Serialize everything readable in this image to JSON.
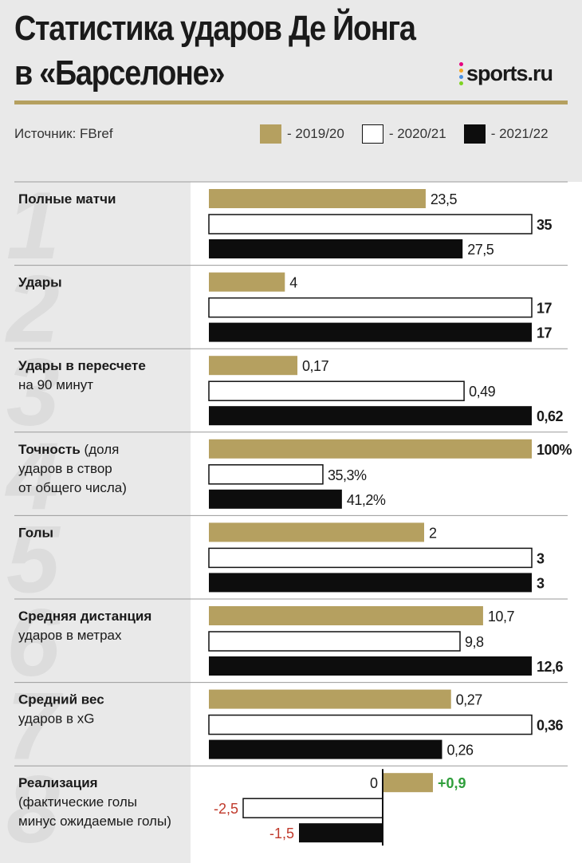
{
  "header": {
    "title_line1": "Статистика ударов Де Йонга",
    "title_line2": "в «Барселоне»",
    "source": "Источник: FBref",
    "logo": "sports.ru",
    "logo_dots": [
      "#e6007e",
      "#f5a623",
      "#4a90e2",
      "#7ed321"
    ]
  },
  "colors": {
    "gold": "#b5a060",
    "black": "#0d0d0d",
    "white": "#ffffff",
    "positive": "#2e9e3a",
    "negative": "#c0392b",
    "watermark": "#dcdcdc"
  },
  "legend": [
    {
      "label": "- 2019/20",
      "color": "#b5a060"
    },
    {
      "label": "- 2020/21",
      "color": "#ffffff"
    },
    {
      "label": "- 2021/22",
      "color": "#0d0d0d"
    }
  ],
  "chart_data": {
    "type": "bar",
    "series_names": [
      "2019/20",
      "2020/21",
      "2021/22"
    ],
    "groups": [
      {
        "label": [
          "Полные матчи"
        ],
        "values": [
          23.5,
          35,
          27.5
        ],
        "labels": [
          "23,5",
          "35",
          "27,5"
        ],
        "max": 35
      },
      {
        "label": [
          "Удары"
        ],
        "values": [
          4,
          17,
          17
        ],
        "labels": [
          "4",
          "17",
          "17"
        ],
        "max": 17
      },
      {
        "label": [
          "Удары в пересчете",
          "на 90 минут"
        ],
        "values": [
          0.17,
          0.49,
          0.62
        ],
        "labels": [
          "0,17",
          "0,49",
          "0,62"
        ],
        "max": 0.62
      },
      {
        "label": [
          "Точность (доля",
          "ударов в створ",
          "от общего числа)"
        ],
        "label_bold_part": "Точность",
        "values": [
          100,
          35.3,
          41.2
        ],
        "labels": [
          "100%",
          "35,3%",
          "41,2%"
        ],
        "max": 100
      },
      {
        "label": [
          "Голы"
        ],
        "values": [
          2,
          3,
          3
        ],
        "labels": [
          "2",
          "3",
          "3"
        ],
        "max": 3
      },
      {
        "label": [
          "Средняя дистанция",
          "ударов в метрах"
        ],
        "values": [
          10.7,
          9.8,
          12.6
        ],
        "labels": [
          "10,7",
          "9,8",
          "12,6"
        ],
        "max": 12.6
      },
      {
        "label": [
          "Средний вес",
          "ударов в xG"
        ],
        "values": [
          0.27,
          0.36,
          0.26
        ],
        "labels": [
          "0,27",
          "0,36",
          "0,26"
        ],
        "max": 0.36
      },
      {
        "label": [
          "Реализация",
          "(фактические голы",
          "минус ожидаемые голы)"
        ],
        "label_bold_part": "Реализация",
        "values": [
          0.9,
          -2.5,
          -1.5
        ],
        "labels": [
          "+0,9",
          "-2,5",
          "-1,5"
        ],
        "zero_label": "0",
        "diverging": true
      }
    ],
    "watermark_digits": [
      "1",
      "2",
      "3",
      "4",
      "5",
      "6",
      "7",
      "8"
    ]
  }
}
